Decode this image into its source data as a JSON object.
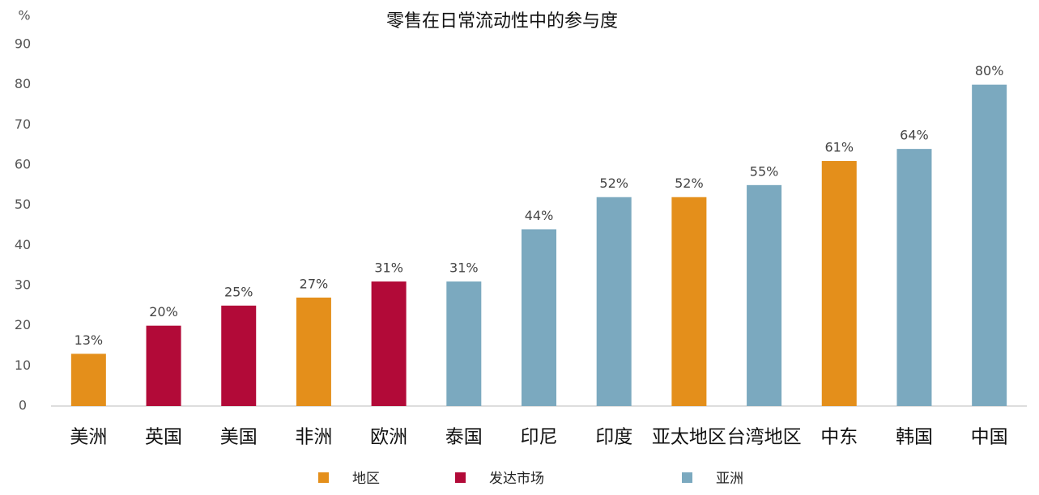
{
  "chart_data": {
    "type": "bar",
    "title": "零售在日常流动性中的参与度",
    "y_label": "%",
    "categories": [
      "美洲",
      "英国",
      "美国",
      "非洲",
      "欧洲",
      "泰国",
      "印尼",
      "印度",
      "亚太地区",
      "台湾地区",
      "中东",
      "韩国",
      "中国"
    ],
    "series": [
      {
        "name": "地区",
        "color": "#e48f1b",
        "values": [
          13,
          null,
          null,
          27,
          null,
          null,
          null,
          null,
          52,
          null,
          61,
          null,
          null
        ],
        "value_labels": [
          "13%",
          null,
          null,
          "27%",
          null,
          null,
          null,
          null,
          "52%",
          null,
          "61%",
          null,
          null
        ]
      },
      {
        "name": "发达市场",
        "color": "#b20a38",
        "values": [
          null,
          20,
          25,
          null,
          31,
          null,
          null,
          null,
          null,
          null,
          null,
          null,
          null
        ],
        "value_labels": [
          null,
          "20%",
          "25%",
          null,
          "31%",
          null,
          null,
          null,
          null,
          null,
          null,
          null,
          null
        ]
      },
      {
        "name": "亚洲",
        "color": "#7ba9bf",
        "values": [
          null,
          null,
          null,
          null,
          null,
          31,
          44,
          52,
          null,
          55,
          null,
          64,
          80
        ],
        "value_labels": [
          null,
          null,
          null,
          null,
          null,
          "31%",
          "44%",
          "52%",
          null,
          "55%",
          null,
          "64%",
          "80%"
        ]
      }
    ],
    "ylim": [
      0,
      90
    ],
    "yticks": [
      0,
      10,
      20,
      30,
      40,
      50,
      60,
      70,
      80,
      90
    ],
    "grid": false,
    "legend": "bottom"
  }
}
